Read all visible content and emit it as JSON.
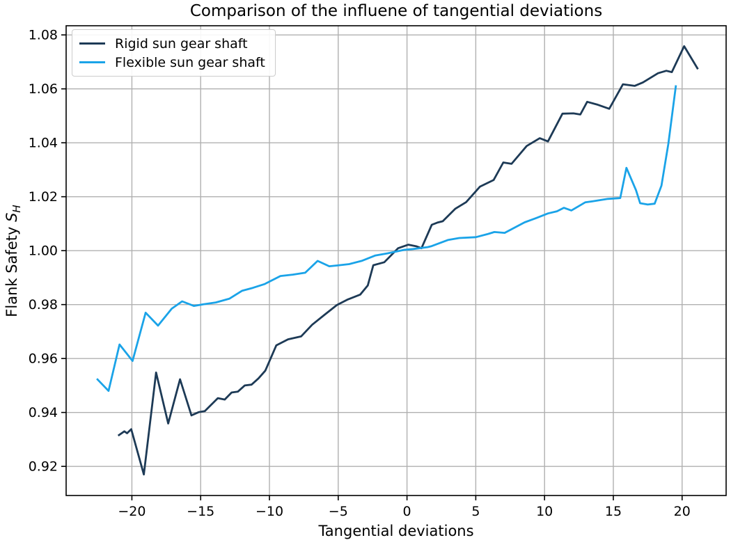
{
  "chart_data": {
    "type": "line",
    "title": "Comparison of the influene of tangential deviations",
    "xlabel": "Tangential deviations",
    "ylabel": {
      "text": "Flank Safety ",
      "symbol": "S",
      "subscript": "H"
    },
    "xlim": [
      -24.78,
      23.2
    ],
    "ylim": [
      0.9092,
      1.0834
    ],
    "grid": true,
    "legend_position": "upper-left",
    "x_ticks": {
      "values": [
        -20,
        -15,
        -10,
        -5,
        0,
        5,
        10,
        15,
        20
      ],
      "labels": [
        "−20",
        "−15",
        "−10",
        "−5",
        "0",
        "5",
        "10",
        "15",
        "20"
      ]
    },
    "y_ticks": {
      "values": [
        0.92,
        0.94,
        0.96,
        0.98,
        1.0,
        1.02,
        1.04,
        1.06,
        1.08
      ],
      "labels": [
        "0.92",
        "0.94",
        "0.96",
        "0.98",
        "1.00",
        "1.02",
        "1.04",
        "1.06",
        "1.08"
      ]
    },
    "series": [
      {
        "name": "Rigid sun gear shaft",
        "color": "#1d3a56",
        "points": [
          [
            -21.0,
            0.9314
          ],
          [
            -20.55,
            0.933
          ],
          [
            -20.35,
            0.9323
          ],
          [
            -20.05,
            0.9338
          ],
          [
            -19.13,
            0.917
          ],
          [
            -18.24,
            0.9548
          ],
          [
            -17.36,
            0.9359
          ],
          [
            -16.5,
            0.9523
          ],
          [
            -15.67,
            0.9389
          ],
          [
            -15.15,
            0.9401
          ],
          [
            -14.7,
            0.9405
          ],
          [
            -13.75,
            0.9453
          ],
          [
            -13.25,
            0.9448
          ],
          [
            -12.75,
            0.9474
          ],
          [
            -12.3,
            0.9477
          ],
          [
            -11.8,
            0.95
          ],
          [
            -11.3,
            0.9503
          ],
          [
            -10.8,
            0.9526
          ],
          [
            -10.3,
            0.9555
          ],
          [
            -9.5,
            0.9649
          ],
          [
            -8.65,
            0.9671
          ],
          [
            -7.7,
            0.9682
          ],
          [
            -6.9,
            0.9725
          ],
          [
            -6.0,
            0.9762
          ],
          [
            -5.1,
            0.9798
          ],
          [
            -4.3,
            0.9819
          ],
          [
            -3.4,
            0.9837
          ],
          [
            -2.85,
            0.9871
          ],
          [
            -2.45,
            0.9946
          ],
          [
            -1.65,
            0.9957
          ],
          [
            -0.65,
            1.0009
          ],
          [
            0.1,
            1.0022
          ],
          [
            0.7,
            1.0016
          ],
          [
            1.05,
            1.0009
          ],
          [
            1.8,
            1.0096
          ],
          [
            2.2,
            1.0104
          ],
          [
            2.6,
            1.0109
          ],
          [
            3.5,
            1.0155
          ],
          [
            4.3,
            1.018
          ],
          [
            5.3,
            1.0237
          ],
          [
            6.3,
            1.0262
          ],
          [
            7.0,
            1.0327
          ],
          [
            7.6,
            1.0322
          ],
          [
            8.7,
            1.0388
          ],
          [
            9.65,
            1.0417
          ],
          [
            10.25,
            1.0405
          ],
          [
            11.3,
            1.0508
          ],
          [
            12.1,
            1.0509
          ],
          [
            12.6,
            1.0505
          ],
          [
            13.1,
            1.0552
          ],
          [
            13.8,
            1.0542
          ],
          [
            14.7,
            1.0526
          ],
          [
            15.7,
            1.0617
          ],
          [
            16.55,
            1.0611
          ],
          [
            17.15,
            1.0624
          ],
          [
            18.25,
            1.0658
          ],
          [
            18.85,
            1.0667
          ],
          [
            19.25,
            1.0662
          ],
          [
            20.15,
            1.0758
          ],
          [
            21.15,
            1.0673
          ]
        ]
      },
      {
        "name": "Flexible sun gear shaft",
        "color": "#1aa3e8",
        "points": [
          [
            -22.55,
            0.9525
          ],
          [
            -21.7,
            0.948
          ],
          [
            -20.9,
            0.9652
          ],
          [
            -19.95,
            0.9591
          ],
          [
            -19.0,
            0.977
          ],
          [
            -18.1,
            0.9722
          ],
          [
            -17.1,
            0.9785
          ],
          [
            -16.35,
            0.9812
          ],
          [
            -15.5,
            0.9795
          ],
          [
            -14.8,
            0.9801
          ],
          [
            -13.9,
            0.9808
          ],
          [
            -12.9,
            0.9822
          ],
          [
            -12.0,
            0.9851
          ],
          [
            -11.2,
            0.9862
          ],
          [
            -10.35,
            0.9876
          ],
          [
            -9.2,
            0.9906
          ],
          [
            -8.3,
            0.9911
          ],
          [
            -7.4,
            0.9918
          ],
          [
            -6.5,
            0.9962
          ],
          [
            -5.65,
            0.9942
          ],
          [
            -5.1,
            0.9945
          ],
          [
            -4.2,
            0.995
          ],
          [
            -3.3,
            0.9962
          ],
          [
            -2.3,
            0.9982
          ],
          [
            -1.4,
            0.999
          ],
          [
            -0.2,
            1.0003
          ],
          [
            0.45,
            1.0006
          ],
          [
            1.5,
            1.0013
          ],
          [
            1.8,
            1.0017
          ],
          [
            3.0,
            1.004
          ],
          [
            3.8,
            1.0047
          ],
          [
            5.0,
            1.005
          ],
          [
            5.9,
            1.0062
          ],
          [
            6.35,
            1.0069
          ],
          [
            7.1,
            1.0066
          ],
          [
            8.55,
            1.0105
          ],
          [
            9.4,
            1.0121
          ],
          [
            10.25,
            1.0138
          ],
          [
            10.9,
            1.0146
          ],
          [
            11.4,
            1.0159
          ],
          [
            11.95,
            1.0149
          ],
          [
            12.95,
            1.0179
          ],
          [
            13.5,
            1.0183
          ],
          [
            14.6,
            1.0192
          ],
          [
            15.5,
            1.0195
          ],
          [
            15.95,
            1.0307
          ],
          [
            16.65,
            1.0224
          ],
          [
            16.95,
            1.0176
          ],
          [
            17.5,
            1.0171
          ],
          [
            18.0,
            1.0174
          ],
          [
            18.5,
            1.0241
          ],
          [
            19.0,
            1.0396
          ],
          [
            19.55,
            1.0613
          ]
        ]
      }
    ],
    "colors": {
      "grid": "#b0b0b0",
      "spine": "#000000",
      "tick_text": "#000000",
      "legend_border": "#cccccc"
    }
  }
}
